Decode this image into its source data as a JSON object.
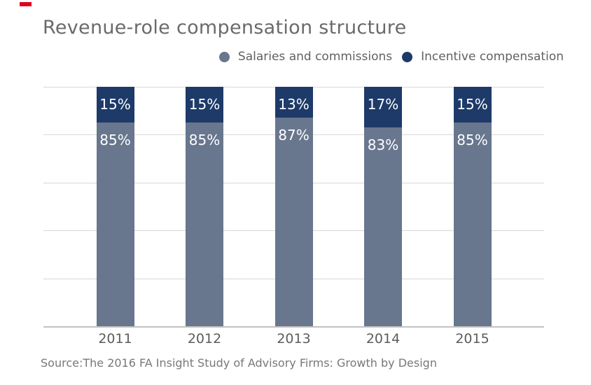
{
  "title": "Revenue-role compensation structure",
  "source": "Source:The 2016 FA Insight Study of Advisory Firms: Growth by Design",
  "legend": {
    "items": [
      {
        "label": "Salaries and commissions",
        "color": "#68768E"
      },
      {
        "label": "Incentive compensation",
        "color": "#1D3A69"
      }
    ]
  },
  "colors": {
    "salaries_fill": "#68768E",
    "incentive_fill": "#1D3A69",
    "gridline": "#D7D7D7",
    "axis_line": "#C2C2C2",
    "brand_accent": "#E1001E",
    "title_text": "#6A6A6A",
    "axis_label_text": "#5C5C5C",
    "source_text": "#787878",
    "bar_label_text": "#FFFFFF"
  },
  "chart_data": {
    "type": "bar",
    "stacked": true,
    "title": "Revenue-role compensation structure",
    "categories": [
      "2011",
      "2012",
      "2013",
      "2014",
      "2015"
    ],
    "series": [
      {
        "name": "Salaries and commissions",
        "color": "#68768E",
        "values": [
          85,
          85,
          87,
          83,
          85
        ],
        "labels": [
          "85%",
          "85%",
          "87%",
          "83%",
          "85%"
        ]
      },
      {
        "name": "Incentive compensation",
        "color": "#1D3A69",
        "values": [
          15,
          15,
          13,
          17,
          15
        ],
        "labels": [
          "15%",
          "15%",
          "13%",
          "17%",
          "15%"
        ]
      }
    ],
    "value_format": "percent",
    "ylim": [
      0,
      100
    ],
    "gridline_interval": 20,
    "grid": true,
    "y_axis_tick_labels_visible": false,
    "legend_position": "top-right",
    "xlabel": "",
    "ylabel": ""
  }
}
